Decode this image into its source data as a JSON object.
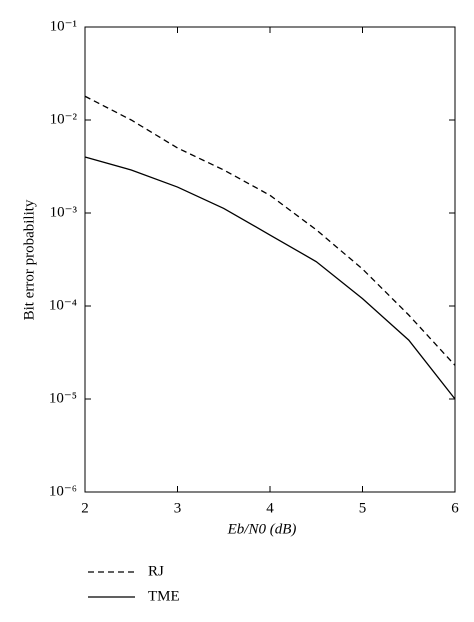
{
  "chart_data": {
    "type": "line",
    "x_label": "Eb/N0 (dB)",
    "y_label": "Bit error probability",
    "x": [
      2,
      2.5,
      3,
      3.5,
      4,
      4.5,
      5,
      5.5,
      6
    ],
    "series": [
      {
        "name": "RJ",
        "color": "#000000",
        "linestyle": "dashed",
        "values": [
          0.018,
          0.01,
          0.005,
          0.0029,
          0.00155,
          0.00066,
          0.00025,
          8e-05,
          2.3e-05
        ]
      },
      {
        "name": "TME",
        "color": "#000000",
        "linestyle": "solid",
        "values": [
          0.004,
          0.0029,
          0.0019,
          0.00112,
          0.00058,
          0.0003,
          0.00012,
          4.3e-05,
          1e-05
        ]
      }
    ],
    "xlim": [
      2,
      6
    ],
    "xticks": [
      2,
      3,
      4,
      5,
      6
    ],
    "yscale": "log",
    "ylim": [
      1e-06,
      0.1
    ],
    "yticks": [
      {
        "value": 0.1,
        "label": "10⁻¹"
      },
      {
        "value": 0.01,
        "label": "10⁻²"
      },
      {
        "value": 0.001,
        "label": "10⁻³"
      },
      {
        "value": 0.0001,
        "label": "10⁻⁴"
      },
      {
        "value": 1e-05,
        "label": "10⁻⁵"
      },
      {
        "value": 1e-06,
        "label": "10⁻⁶"
      }
    ],
    "legend": "bottom-left"
  }
}
